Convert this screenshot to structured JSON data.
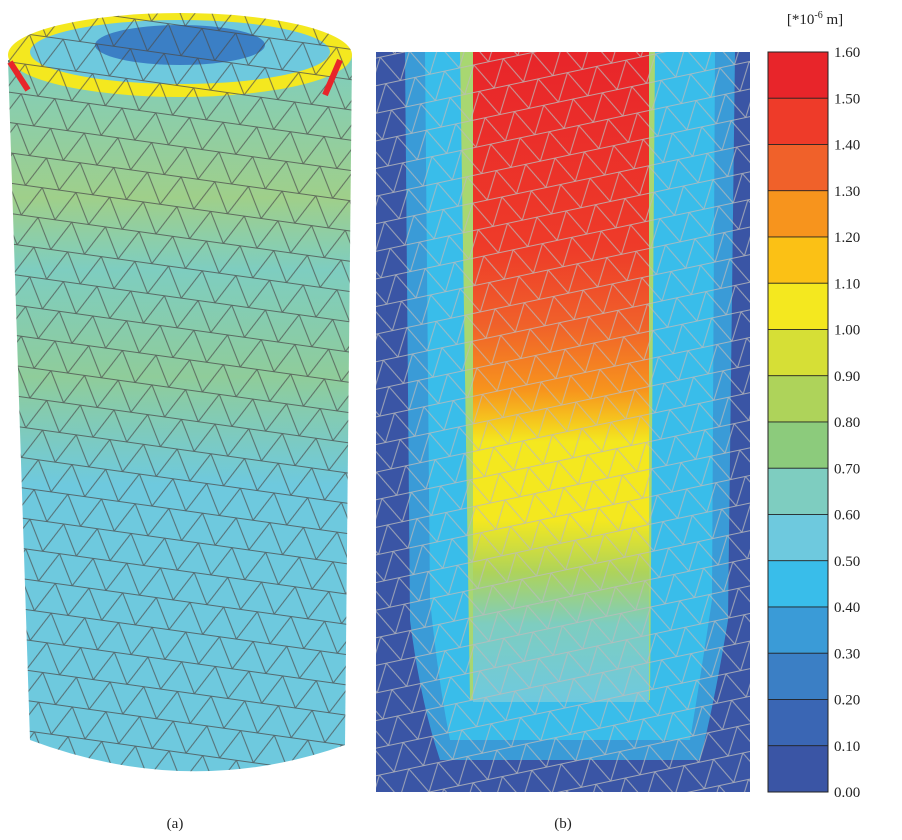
{
  "figure": {
    "panels": [
      {
        "label": "(a)"
      },
      {
        "label": "(b)"
      }
    ],
    "legend": {
      "unit": {
        "prefix": "[*10",
        "exponent": "-6",
        "suffix": " m]"
      },
      "labels": [
        "1.60",
        "1.50",
        "1.40",
        "1.30",
        "1.20",
        "1.10",
        "1.00",
        "0.90",
        "0.80",
        "0.70",
        "0.60",
        "0.50",
        "0.40",
        "0.30",
        "0.20",
        "0.10",
        "0.00"
      ],
      "colors": [
        "#e8252a",
        "#ee3b29",
        "#f0612a",
        "#f7941d",
        "#fbc115",
        "#f4e81f",
        "#d6df36",
        "#aed35a",
        "#8ccb7c",
        "#7ecdc0",
        "#6ec9de",
        "#39bdea",
        "#3a9bd7",
        "#3b7fc5",
        "#3a66b4",
        "#3a55a5"
      ]
    }
  }
}
